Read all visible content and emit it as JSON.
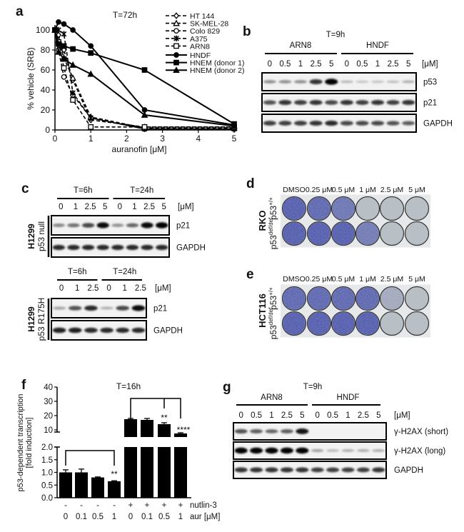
{
  "panel_labels": {
    "a": "a",
    "b": "b",
    "c": "c",
    "d": "d",
    "e": "e",
    "f": "f",
    "g": "g"
  },
  "chart_data": [
    {
      "type": "line",
      "panel": "a",
      "title": "T=72h",
      "xlabel": "auranofin [μM]",
      "ylabel": "% vehicle (SRB)",
      "xlim": [
        0,
        5
      ],
      "ylim": [
        0,
        110
      ],
      "xticks": [
        "0",
        "1",
        "2",
        "3",
        "4",
        "5"
      ],
      "yticks": [
        "0",
        "20",
        "40",
        "60",
        "80",
        "100"
      ],
      "grid": false,
      "legend_position": "top-right",
      "x": [
        0,
        0.1,
        0.25,
        0.5,
        1,
        2.5,
        5
      ],
      "series": [
        {
          "name": "HT 144",
          "style": "dashed",
          "marker": "open-diamond",
          "values": [
            100,
            95,
            80,
            50,
            10,
            3,
            3
          ]
        },
        {
          "name": "SK-MEL-28",
          "style": "dashed",
          "marker": "open-triangle",
          "values": [
            100,
            90,
            72,
            52,
            13,
            2,
            2
          ]
        },
        {
          "name": "Colo 829",
          "style": "dashed",
          "marker": "open-circle",
          "values": [
            100,
            80,
            53,
            35,
            12,
            1,
            1
          ]
        },
        {
          "name": "A375",
          "style": "dashed",
          "marker": "star",
          "values": [
            100,
            100,
            96,
            37,
            12,
            1,
            1
          ]
        },
        {
          "name": "ARN8",
          "style": "dashed",
          "marker": "open-square",
          "values": [
            100,
            88,
            62,
            30,
            3,
            3,
            3
          ]
        },
        {
          "name": "HNDF",
          "style": "solid",
          "marker": "filled-circle",
          "values": [
            100,
            108,
            106,
            100,
            84,
            20,
            5
          ]
        },
        {
          "name": "HNEM (donor 1)",
          "style": "solid",
          "marker": "filled-square",
          "values": [
            100,
            86,
            84,
            81,
            77,
            60,
            6
          ]
        },
        {
          "name": "HNEM (donor 2)",
          "style": "solid",
          "marker": "filled-triangle",
          "values": [
            100,
            78,
            71,
            65,
            56,
            15,
            4
          ]
        }
      ]
    },
    {
      "type": "bar",
      "panel": "f",
      "title": "T=16h",
      "ylabel": "p53-dependent transcription\n[fold induction]",
      "ylabel_lines": [
        "p53-dependent transcription",
        "[fold induction]"
      ],
      "y_axis_broken": true,
      "yticks_lower": [
        "0.0",
        "0.5",
        "1.0",
        "1.5",
        "2.0"
      ],
      "yticks_upper": [
        "10",
        "20",
        "30",
        "40"
      ],
      "row_labels": {
        "nutlin": "nutlin-3",
        "aur": "aur [μM]"
      },
      "nutlin": [
        "-",
        "-",
        "-",
        "-",
        "+",
        "+",
        "+",
        "+"
      ],
      "aur": [
        "0",
        "0.1",
        "0.5",
        "1",
        "0",
        "0.1",
        "0.5",
        "1"
      ],
      "values": [
        1.0,
        1.0,
        0.8,
        0.65,
        17.5,
        17,
        14,
        7.5
      ],
      "errors": [
        0.1,
        0.13,
        0.02,
        0.02,
        0.5,
        1.0,
        1.0,
        0.5
      ],
      "significance": [
        "",
        "",
        "",
        "**",
        "",
        "",
        "**",
        "****"
      ]
    }
  ],
  "blot_b": {
    "time": "T=9h",
    "groups": [
      "ARN8",
      "HNDF"
    ],
    "unit": "[μM]",
    "concs": [
      "0",
      "0.5",
      "1",
      "2.5",
      "5",
      "0",
      "0.5",
      "1",
      "2.5",
      "5"
    ],
    "rows": [
      {
        "label": "p53",
        "bands": [
          0.3,
          0.3,
          0.3,
          0.75,
          1.0,
          0.1,
          0.05,
          0.06,
          0.08,
          0.15
        ]
      },
      {
        "label": "p21",
        "bands": [
          0.6,
          0.75,
          0.7,
          0.75,
          0.65,
          0.75,
          0.7,
          0.75,
          0.7,
          0.75
        ]
      },
      {
        "label": "GAPDH",
        "bands": [
          0.7,
          0.7,
          0.7,
          0.75,
          0.8,
          0.65,
          0.65,
          0.65,
          0.6,
          0.55
        ]
      }
    ]
  },
  "blot_c1": {
    "times": [
      "T=6h",
      "T=24h"
    ],
    "unit": "[μM]",
    "concs": [
      "0",
      "1",
      "2.5",
      "5",
      "0",
      "1",
      "2.5",
      "5"
    ],
    "cell_line": "H1299",
    "genotype": "p53 null",
    "rows": [
      {
        "label": "p21",
        "bands": [
          0.35,
          0.45,
          0.65,
          0.95,
          0.3,
          0.5,
          0.95,
          1.0
        ]
      },
      {
        "label": "GAPDH",
        "bands": [
          0.8,
          0.8,
          0.8,
          0.8,
          0.8,
          0.8,
          0.8,
          0.8
        ]
      }
    ]
  },
  "blot_c2": {
    "times": [
      "T=6h",
      "T=24h"
    ],
    "unit": "[μM]",
    "concs": [
      "0",
      "1",
      "2.5",
      "0",
      "1",
      "2.5"
    ],
    "cell_line": "H1299",
    "genotype": "p53 R175H",
    "rows": [
      {
        "label": "p21",
        "bands": [
          0.2,
          0.6,
          0.8,
          0.15,
          0.65,
          0.95
        ]
      },
      {
        "label": "GAPDH",
        "bands": [
          0.85,
          0.85,
          0.8,
          0.8,
          0.8,
          0.8
        ]
      }
    ]
  },
  "plates_d": {
    "cell_line": "RKO",
    "concs": [
      "DMSO",
      "0.25 μM",
      "0.5 μM",
      "1 μM",
      "2.5 μM",
      "5 μM"
    ],
    "rows": [
      {
        "genotype": "p53",
        "sup": "+/+",
        "coverage": [
          1,
          0.9,
          0.75,
          0,
          0,
          0
        ]
      },
      {
        "genotype": "p53",
        "sup": "def/def",
        "coverage": [
          1,
          1,
          1,
          0.7,
          0,
          0
        ]
      }
    ],
    "stain_color": "#4a55b0",
    "empty_color": "#b9c0c5"
  },
  "plates_e": {
    "cell_line": "HCT116",
    "concs": [
      "DMSO",
      "0.25 μM",
      "0.5 μM",
      "1 μM",
      "2.5 μM",
      "5 μM"
    ],
    "rows": [
      {
        "genotype": "p53",
        "sup": "+/+",
        "coverage": [
          0.9,
          0.9,
          0.9,
          0.9,
          0.2,
          0
        ]
      },
      {
        "genotype": "p53",
        "sup": "def/def",
        "coverage": [
          1,
          1,
          1,
          1,
          0,
          0
        ]
      }
    ],
    "stain_color": "#4a55b0",
    "empty_color": "#b9c0c5"
  },
  "blot_g": {
    "time": "T=9h",
    "groups": [
      "ARN8",
      "HNDF"
    ],
    "unit": "[μM]",
    "concs": [
      "0",
      "0.5",
      "1",
      "2.5",
      "5",
      "0",
      "0.5",
      "1",
      "2.5",
      "5"
    ],
    "rows": [
      {
        "label": "γ-H2AX (short)",
        "bands": [
          0.6,
          0.55,
          0.5,
          0.55,
          0.9,
          0,
          0,
          0,
          0,
          0
        ]
      },
      {
        "label": "γ-H2AX (long)",
        "bands": [
          1,
          1,
          1,
          1,
          1,
          0.2,
          0.1,
          0.15,
          0.15,
          0.15
        ]
      },
      {
        "label": "GAPDH",
        "bands": [
          0.75,
          0.75,
          0.75,
          0.75,
          0.75,
          0.7,
          0.7,
          0.7,
          0.7,
          0.75
        ]
      }
    ]
  }
}
